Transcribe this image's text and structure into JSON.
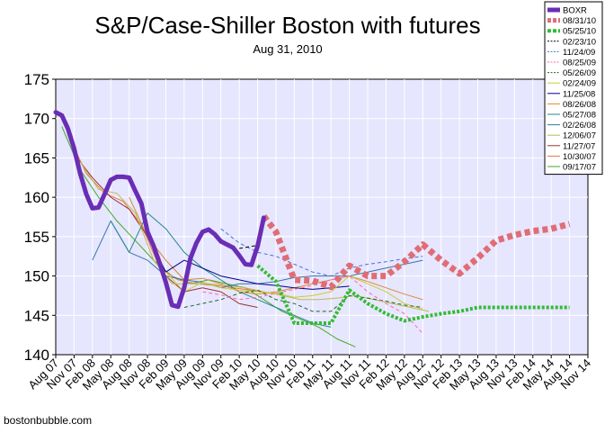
{
  "chart_data": {
    "type": "line",
    "title": "S&P/Case-Shiller Boston with futures",
    "subtitle": "Aug 31, 2010",
    "footer": "bostonbubble.com",
    "xlabel": "",
    "ylabel": "",
    "ylim": [
      140,
      175
    ],
    "yticks": [
      140,
      145,
      150,
      155,
      160,
      165,
      170,
      175
    ],
    "x_ticks": [
      "Aug 07",
      "Nov 07",
      "Feb 08",
      "May 08",
      "Aug 08",
      "Nov 08",
      "Feb 09",
      "May 09",
      "Aug 09",
      "Nov 09",
      "Feb 10",
      "May 10",
      "Aug 10",
      "Nov 10",
      "Feb 11",
      "May 11",
      "Aug 11",
      "Nov 11",
      "Feb 12",
      "May 12",
      "Aug 12",
      "Nov 12",
      "Feb 13",
      "May 13",
      "Aug 13",
      "Nov 13",
      "Feb 14",
      "May 14",
      "Aug 14",
      "Nov 14"
    ],
    "plot_background": "#e6e6ff",
    "grid": true,
    "legend_position": "top-right",
    "series": [
      {
        "name": "BOXR",
        "color": "#6a2db5",
        "width": 5,
        "dash": "",
        "x": [
          "Aug 07",
          "Sep 07",
          "Oct 07",
          "Nov 07",
          "Dec 07",
          "Jan 08",
          "Feb 08",
          "Mar 08",
          "Apr 08",
          "May 08",
          "Jun 08",
          "Jul 08",
          "Aug 08",
          "Sep 08",
          "Oct 08",
          "Nov 08",
          "Dec 08",
          "Jan 09",
          "Feb 09",
          "Mar 09",
          "Apr 09",
          "May 09",
          "Jun 09",
          "Jul 09",
          "Aug 09",
          "Sep 09",
          "Oct 09",
          "Nov 09",
          "Dec 09",
          "Jan 10",
          "Feb 10",
          "Mar 10",
          "Apr 10",
          "May 10",
          "Jun 10"
        ],
        "values": [
          170.8,
          170.4,
          168.7,
          166.2,
          163.0,
          160.4,
          158.6,
          158.7,
          160.4,
          162.2,
          162.6,
          162.6,
          162.5,
          160.8,
          159.2,
          155.6,
          153.8,
          151.6,
          149.2,
          146.3,
          146.1,
          148.5,
          152.2,
          154.2,
          155.6,
          155.9,
          155.3,
          154.4,
          154.0,
          153.6,
          152.6,
          151.5,
          151.4,
          153.8,
          157.4
        ]
      },
      {
        "name": "08/31/10",
        "color": "#e06d75",
        "width": 7,
        "dash": "6,4",
        "x": [
          "Jun 10",
          "Aug 10",
          "Nov 10",
          "Feb 11",
          "May 11",
          "Aug 11",
          "Nov 11",
          "Feb 12",
          "May 12",
          "Aug 12",
          "Nov 12",
          "Feb 13",
          "May 13",
          "Aug 13",
          "Nov 13",
          "Feb 14",
          "May 14",
          "Aug 14"
        ],
        "values": [
          157.6,
          155.6,
          149.5,
          149.4,
          148.6,
          151.3,
          150.0,
          150.0,
          151.8,
          154.0,
          152.0,
          150.3,
          152.3,
          154.5,
          155.2,
          155.7,
          156.0,
          156.6
        ]
      },
      {
        "name": "05/25/10",
        "color": "#33bb33",
        "width": 4,
        "dash": "3,2",
        "x": [
          "May 10",
          "Aug 10",
          "Nov 10",
          "Feb 11",
          "May 11",
          "Aug 11",
          "Nov 11",
          "Feb 12",
          "May 12",
          "Aug 12",
          "Nov 12",
          "Feb 13",
          "May 13",
          "Aug 13",
          "Nov 13",
          "Feb 14",
          "May 14",
          "Aug 14"
        ],
        "values": [
          151.3,
          149.3,
          144.0,
          144.0,
          144.0,
          148.2,
          146.5,
          145.2,
          144.3,
          144.8,
          145.2,
          145.5,
          146.0,
          146.0,
          146.0,
          146.0,
          146.0,
          146.0
        ]
      },
      {
        "name": "02/23/10",
        "color": "#000000",
        "width": 1,
        "dash": "4,3",
        "x": [
          "Feb 10",
          "May 10"
        ],
        "values": [
          153.5,
          153.9
        ]
      },
      {
        "name": "11/24/09",
        "color": "#4a6fd0",
        "width": 1,
        "dash": "4,3",
        "x": [
          "Nov 09",
          "Feb 10",
          "May 10",
          "Aug 10",
          "Nov 10",
          "Feb 11",
          "May 11",
          "Aug 11",
          "Nov 11",
          "Feb 12",
          "May 12",
          "Aug 12"
        ],
        "values": [
          156.0,
          154.2,
          153.0,
          152.5,
          151.5,
          150.5,
          150.0,
          151.0,
          151.5,
          151.8,
          152.2,
          152.5
        ]
      },
      {
        "name": "08/25/09",
        "color": "#ff66aa",
        "width": 1,
        "dash": "4,3",
        "x": [
          "Aug 09",
          "Nov 09",
          "Feb 10",
          "May 10",
          "Aug 10",
          "Nov 10",
          "Feb 11",
          "May 11",
          "Aug 11",
          "Nov 11",
          "Feb 12",
          "May 12",
          "Aug 12"
        ],
        "values": [
          148.0,
          147.6,
          147.0,
          147.3,
          147.8,
          148.3,
          148.8,
          149.5,
          150.0,
          148.0,
          146.5,
          145.2,
          142.7
        ]
      },
      {
        "name": "05/26/09",
        "color": "#226622",
        "width": 1,
        "dash": "4,3",
        "x": [
          "May 09",
          "Aug 09",
          "Nov 09",
          "Feb 10",
          "May 10",
          "Aug 10",
          "Nov 10",
          "Feb 11",
          "May 11",
          "Aug 11",
          "Nov 11",
          "Feb 12",
          "May 12",
          "Aug 12"
        ],
        "values": [
          146.0,
          146.5,
          147.0,
          147.8,
          148.2,
          147.0,
          146.5,
          145.5,
          145.5,
          147.5,
          147.2,
          146.8,
          146.3,
          146.0
        ]
      },
      {
        "name": "02/24/09",
        "color": "#cccc33",
        "width": 1,
        "dash": "",
        "x": [
          "Feb 09",
          "May 09",
          "Aug 09",
          "Nov 09",
          "Feb 10",
          "May 10",
          "Aug 10",
          "Nov 10",
          "Feb 11",
          "May 11",
          "Aug 11",
          "Nov 11",
          "Feb 12",
          "May 12",
          "Aug 12"
        ],
        "values": [
          150.5,
          148.0,
          149.2,
          148.5,
          148.2,
          148.0,
          147.8,
          147.3,
          147.5,
          148.0,
          150.0,
          149.0,
          148.0,
          146.5,
          145.8
        ]
      },
      {
        "name": "11/25/08",
        "color": "#000088",
        "width": 1,
        "dash": "",
        "x": [
          "Nov 08",
          "Feb 09",
          "May 09",
          "Aug 09",
          "Nov 09",
          "Feb 10",
          "May 10",
          "Aug 10",
          "Nov 10",
          "Feb 11",
          "May 11",
          "Aug 11"
        ],
        "values": [
          155.2,
          150.5,
          152.0,
          151.0,
          150.0,
          149.5,
          149.0,
          148.8,
          148.5,
          148.3,
          148.5,
          148.7
        ]
      },
      {
        "name": "08/26/08",
        "color": "#dd8833",
        "width": 1,
        "dash": "",
        "x": [
          "Aug 08",
          "Nov 08",
          "Feb 09",
          "May 09",
          "Aug 09",
          "Nov 09",
          "Feb 10",
          "May 10",
          "Aug 10",
          "Nov 10",
          "Feb 11",
          "May 11",
          "Aug 11",
          "Nov 11",
          "Feb 12",
          "May 12",
          "Aug 12"
        ],
        "values": [
          160.0,
          155.0,
          152.0,
          149.5,
          149.7,
          149.0,
          148.0,
          147.7,
          148.0,
          148.5,
          149.0,
          149.5,
          150.0,
          149.3,
          148.5,
          147.7,
          147.0
        ]
      },
      {
        "name": "05/27/08",
        "color": "#228888",
        "width": 1,
        "dash": "",
        "x": [
          "May 08",
          "Aug 08",
          "Nov 08",
          "Feb 09",
          "May 09",
          "Aug 09",
          "Nov 09",
          "Feb 10",
          "May 10",
          "Aug 10",
          "Nov 10",
          "Feb 11",
          "May 11"
        ],
        "values": [
          157.0,
          153.0,
          158.0,
          156.0,
          153.0,
          151.0,
          149.5,
          148.0,
          147.0,
          146.0,
          145.0,
          144.0,
          143.5
        ]
      },
      {
        "name": "02/26/08",
        "color": "#3377aa",
        "width": 1,
        "dash": "",
        "x": [
          "Feb 08",
          "May 08",
          "Aug 08",
          "Nov 08",
          "Feb 09",
          "May 09",
          "Aug 09",
          "Nov 09",
          "Feb 10",
          "May 10",
          "Aug 10",
          "Nov 10",
          "Feb 11",
          "May 11",
          "Aug 11",
          "Nov 11",
          "Feb 12",
          "May 12",
          "Aug 12"
        ],
        "values": [
          152.0,
          157.0,
          153.0,
          152.0,
          150.0,
          149.5,
          149.2,
          148.5,
          149.0,
          149.0,
          149.3,
          149.8,
          150.0,
          150.0,
          150.0,
          150.5,
          151.0,
          151.5,
          152.0
        ]
      },
      {
        "name": "12/06/07",
        "color": "#bbbb55",
        "width": 1,
        "dash": "",
        "x": [
          "Dec 07",
          "Mar 08",
          "Jun 08",
          "Sep 08",
          "Dec 08",
          "Mar 09",
          "Jun 09",
          "Sep 09",
          "Dec 09",
          "Mar 10",
          "Jun 10",
          "Sep 10",
          "Dec 10",
          "Mar 11",
          "Jun 11",
          "Sep 11",
          "Dec 11",
          "Mar 12",
          "Jun 12",
          "Sep 12"
        ],
        "values": [
          164.5,
          161.0,
          160.5,
          158.0,
          152.0,
          149.0,
          149.0,
          149.0,
          148.8,
          148.5,
          148.0,
          147.5,
          147.0,
          147.0,
          147.2,
          147.5,
          147.0,
          146.5,
          146.0,
          145.5
        ]
      },
      {
        "name": "11/27/07",
        "color": "#993333",
        "width": 1,
        "dash": "",
        "x": [
          "Nov 07",
          "Feb 08",
          "May 08",
          "Aug 08",
          "Nov 08",
          "Feb 09",
          "May 09",
          "Aug 09",
          "Nov 09",
          "Feb 10",
          "May 10"
        ],
        "values": [
          165.5,
          162.5,
          160.0,
          158.5,
          155.0,
          150.0,
          148.0,
          148.5,
          148.0,
          146.5,
          146.0
        ]
      },
      {
        "name": "10/30/07",
        "color": "#ee7744",
        "width": 1,
        "dash": "",
        "x": [
          "Oct 07",
          "Jan 08",
          "Apr 08",
          "Jul 08",
          "Oct 08",
          "Jan 09",
          "Apr 09",
          "Jul 09",
          "Oct 09",
          "Jan 10",
          "Apr 10",
          "Jul 10"
        ],
        "values": [
          168.0,
          163.0,
          160.5,
          159.5,
          156.5,
          151.0,
          149.5,
          149.0,
          148.8,
          148.5,
          148.2,
          147.8
        ]
      },
      {
        "name": "09/17/07",
        "color": "#44aa22",
        "width": 1,
        "dash": "",
        "x": [
          "Sep 07",
          "Dec 07",
          "Mar 08",
          "Jun 08",
          "Sep 08",
          "Dec 08",
          "Mar 09",
          "Jun 09",
          "Sep 09",
          "Dec 09",
          "Mar 10",
          "Jun 10",
          "Sep 10",
          "Dec 10",
          "Mar 11",
          "Jun 11",
          "Sep 11"
        ],
        "values": [
          169.0,
          163.5,
          160.0,
          157.0,
          154.5,
          152.0,
          150.0,
          149.0,
          149.5,
          149.0,
          148.5,
          147.0,
          145.5,
          144.5,
          143.5,
          142.0,
          141.0
        ]
      }
    ]
  }
}
